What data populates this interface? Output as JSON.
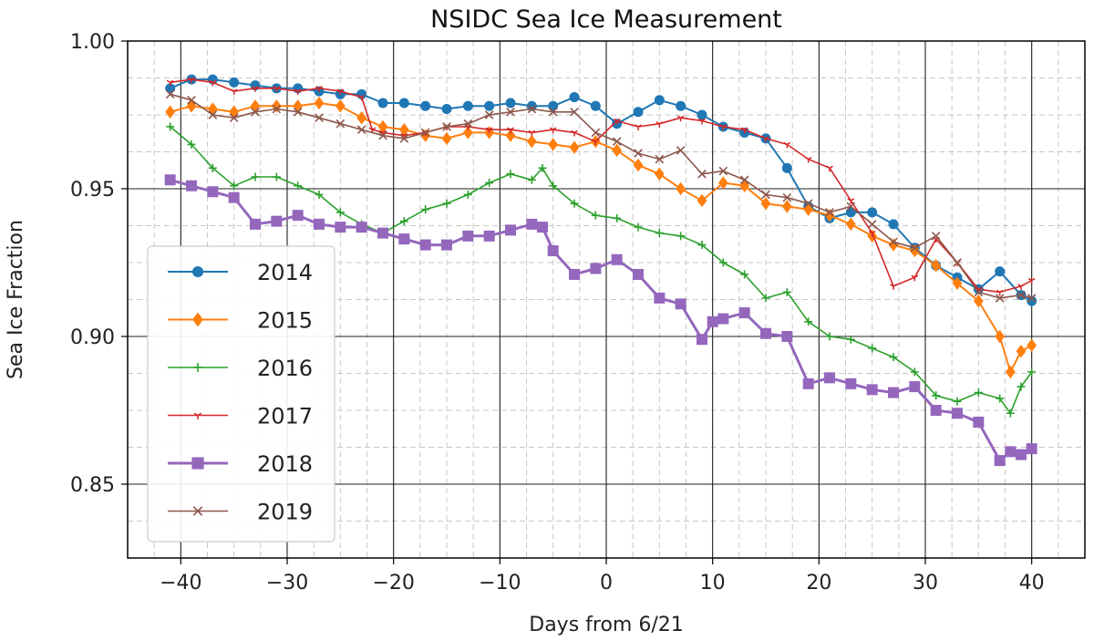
{
  "chart_data": {
    "type": "line",
    "title": "NSIDC Sea Ice Measurement",
    "xlabel": "Days from 6/21",
    "ylabel": "Sea Ice Fraction",
    "xlim": [
      -45,
      45
    ],
    "ylim": [
      0.825,
      1.0
    ],
    "xticks": [
      -40,
      -30,
      -20,
      -10,
      0,
      10,
      20,
      30,
      40
    ],
    "xtick_labels": [
      "−40",
      "−30",
      "−20",
      "−10",
      "0",
      "10",
      "20",
      "30",
      "40"
    ],
    "yticks": [
      0.85,
      0.9,
      0.95,
      1.0
    ],
    "ytick_labels": [
      "0.85",
      "0.90",
      "0.95",
      "1.00"
    ],
    "grid": "major and minor",
    "legend_position": "lower-left",
    "series": [
      {
        "name": "2014",
        "color": "#1f77b4",
        "marker": "circle",
        "x": [
          -41,
          -39,
          -37,
          -35,
          -33,
          -31,
          -29,
          -27,
          -25,
          -23,
          -21,
          -19,
          -17,
          -15,
          -13,
          -11,
          -9,
          -7,
          -5,
          -3,
          -1,
          1,
          3,
          5,
          7,
          9,
          11,
          13,
          15,
          17,
          19,
          21,
          23,
          25,
          27,
          29,
          31,
          33,
          35,
          37,
          39,
          40
        ],
        "y": [
          0.984,
          0.987,
          0.987,
          0.986,
          0.985,
          0.984,
          0.984,
          0.983,
          0.982,
          0.982,
          0.979,
          0.979,
          0.978,
          0.977,
          0.978,
          0.978,
          0.979,
          0.978,
          0.978,
          0.981,
          0.978,
          0.972,
          0.976,
          0.98,
          0.978,
          0.975,
          0.971,
          0.969,
          0.967,
          0.957,
          0.944,
          0.94,
          0.942,
          0.942,
          0.938,
          0.93,
          0.924,
          0.92,
          0.916,
          0.922,
          0.914,
          0.912
        ]
      },
      {
        "name": "2015",
        "color": "#ff7f0e",
        "marker": "diamond",
        "x": [
          -41,
          -39,
          -37,
          -35,
          -33,
          -31,
          -29,
          -27,
          -25,
          -23,
          -21,
          -19,
          -17,
          -15,
          -13,
          -11,
          -9,
          -7,
          -5,
          -3,
          -1,
          1,
          3,
          5,
          7,
          9,
          11,
          13,
          15,
          17,
          19,
          21,
          23,
          25,
          27,
          29,
          31,
          33,
          35,
          37,
          38,
          39,
          40
        ],
        "y": [
          0.976,
          0.978,
          0.977,
          0.976,
          0.978,
          0.978,
          0.978,
          0.979,
          0.978,
          0.974,
          0.971,
          0.97,
          0.968,
          0.967,
          0.969,
          0.969,
          0.968,
          0.966,
          0.965,
          0.964,
          0.966,
          0.963,
          0.958,
          0.955,
          0.95,
          0.946,
          0.952,
          0.951,
          0.945,
          0.944,
          0.943,
          0.941,
          0.938,
          0.934,
          0.931,
          0.929,
          0.924,
          0.918,
          0.912,
          0.9,
          0.888,
          0.895,
          0.897
        ]
      },
      {
        "name": "2016",
        "color": "#2ca02c",
        "marker": "plus",
        "x": [
          -41,
          -39,
          -37,
          -35,
          -33,
          -31,
          -29,
          -27,
          -25,
          -23,
          -21,
          -19,
          -17,
          -15,
          -13,
          -11,
          -9,
          -7,
          -6,
          -5,
          -3,
          -1,
          1,
          3,
          5,
          7,
          9,
          11,
          13,
          15,
          17,
          19,
          21,
          23,
          25,
          27,
          29,
          31,
          33,
          35,
          37,
          38,
          39,
          40
        ],
        "y": [
          0.971,
          0.965,
          0.957,
          0.951,
          0.954,
          0.954,
          0.951,
          0.948,
          0.942,
          0.938,
          0.935,
          0.939,
          0.943,
          0.945,
          0.948,
          0.952,
          0.955,
          0.953,
          0.957,
          0.951,
          0.945,
          0.941,
          0.94,
          0.937,
          0.935,
          0.934,
          0.931,
          0.925,
          0.921,
          0.913,
          0.915,
          0.905,
          0.9,
          0.899,
          0.896,
          0.893,
          0.888,
          0.88,
          0.878,
          0.881,
          0.879,
          0.874,
          0.883,
          0.888
        ]
      },
      {
        "name": "2017",
        "color": "#d62728",
        "marker": "tri_down",
        "x": [
          -41,
          -39,
          -37,
          -35,
          -33,
          -31,
          -29,
          -27,
          -25,
          -23,
          -22,
          -21,
          -19,
          -17,
          -15,
          -13,
          -11,
          -9,
          -7,
          -5,
          -3,
          -1,
          1,
          3,
          5,
          7,
          9,
          11,
          13,
          15,
          17,
          19,
          21,
          23,
          25,
          27,
          29,
          31,
          33,
          35,
          37,
          39,
          40
        ],
        "y": [
          0.986,
          0.987,
          0.986,
          0.983,
          0.984,
          0.984,
          0.983,
          0.984,
          0.983,
          0.981,
          0.97,
          0.969,
          0.968,
          0.969,
          0.971,
          0.971,
          0.97,
          0.97,
          0.969,
          0.97,
          0.969,
          0.966,
          0.973,
          0.971,
          0.972,
          0.974,
          0.973,
          0.971,
          0.97,
          0.967,
          0.965,
          0.96,
          0.957,
          0.946,
          0.935,
          0.917,
          0.92,
          0.933,
          0.925,
          0.916,
          0.915,
          0.917,
          0.919
        ]
      },
      {
        "name": "2018",
        "color": "#9467bd",
        "marker": "square",
        "x": [
          -41,
          -39,
          -37,
          -35,
          -33,
          -31,
          -29,
          -27,
          -25,
          -23,
          -21,
          -19,
          -17,
          -15,
          -13,
          -11,
          -9,
          -7,
          -6,
          -5,
          -3,
          -1,
          1,
          3,
          5,
          7,
          9,
          10,
          11,
          13,
          15,
          17,
          19,
          21,
          23,
          25,
          27,
          29,
          31,
          33,
          35,
          37,
          38,
          39,
          40
        ],
        "y": [
          0.953,
          0.951,
          0.949,
          0.947,
          0.938,
          0.939,
          0.941,
          0.938,
          0.937,
          0.937,
          0.935,
          0.933,
          0.931,
          0.931,
          0.934,
          0.934,
          0.936,
          0.938,
          0.937,
          0.929,
          0.921,
          0.923,
          0.926,
          0.921,
          0.913,
          0.911,
          0.899,
          0.905,
          0.906,
          0.908,
          0.901,
          0.9,
          0.884,
          0.886,
          0.884,
          0.882,
          0.881,
          0.883,
          0.875,
          0.874,
          0.871,
          0.858,
          0.861,
          0.86,
          0.862
        ]
      },
      {
        "name": "2019",
        "color": "#8c564b",
        "marker": "x",
        "x": [
          -41,
          -39,
          -37,
          -35,
          -33,
          -31,
          -29,
          -27,
          -25,
          -23,
          -21,
          -19,
          -17,
          -15,
          -13,
          -11,
          -9,
          -7,
          -5,
          -3,
          -1,
          1,
          3,
          5,
          7,
          9,
          11,
          13,
          15,
          17,
          19,
          21,
          23,
          25,
          27,
          29,
          31,
          33,
          35,
          37,
          39,
          40
        ],
        "y": [
          0.982,
          0.98,
          0.975,
          0.974,
          0.976,
          0.977,
          0.976,
          0.974,
          0.972,
          0.97,
          0.968,
          0.967,
          0.969,
          0.971,
          0.972,
          0.975,
          0.976,
          0.977,
          0.976,
          0.976,
          0.969,
          0.966,
          0.962,
          0.96,
          0.963,
          0.955,
          0.956,
          0.953,
          0.948,
          0.947,
          0.945,
          0.942,
          0.944,
          0.938,
          0.932,
          0.93,
          0.934,
          0.925,
          0.915,
          0.913,
          0.914,
          0.913
        ]
      }
    ]
  }
}
